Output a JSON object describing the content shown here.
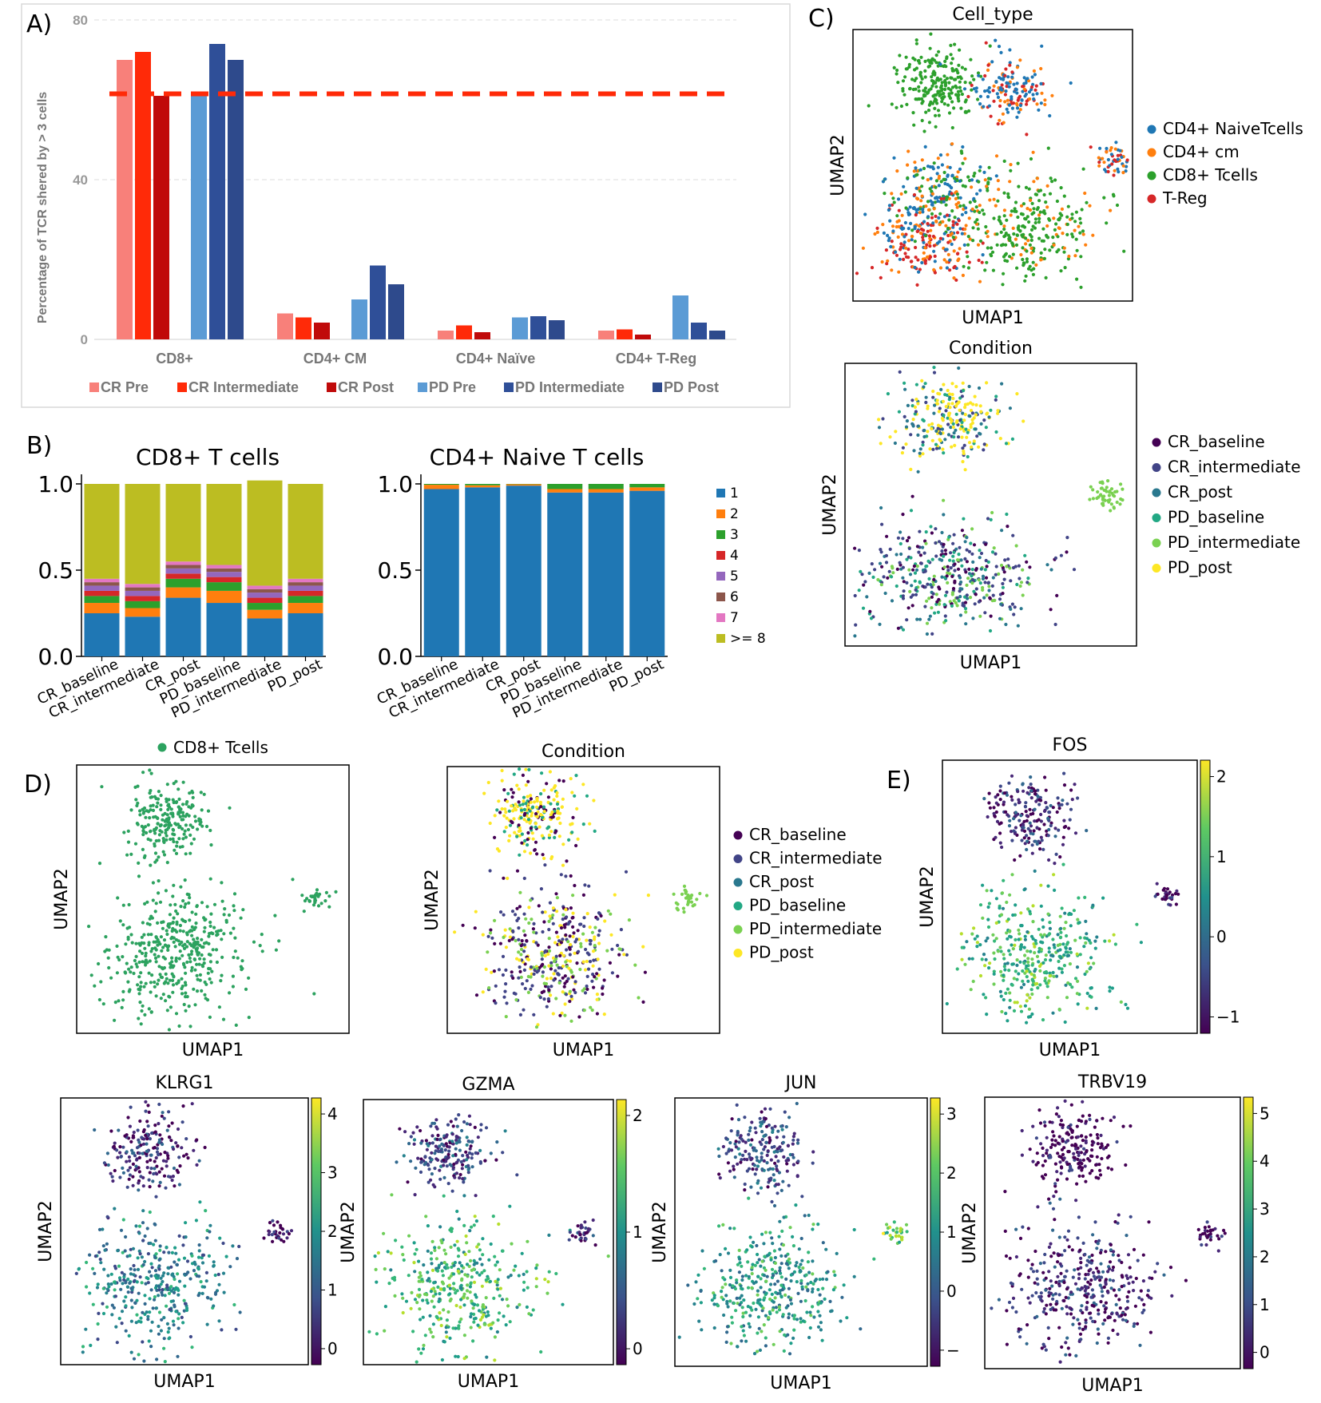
{
  "chart_data": [
    {
      "panel": "A)",
      "type": "bar",
      "ylabel": "Percentage of TCR shered by > 3 cells",
      "ylim": [
        0,
        80
      ],
      "yticks": [
        "80",
        "40",
        "0"
      ],
      "categories": [
        "CD8+",
        "CD4+ CM",
        "CD4+ Naïve",
        "CD4+ T-Reg"
      ],
      "series": [
        {
          "name": "CR Pre",
          "color": "#f8807a",
          "values": [
            70,
            6.5,
            2.2,
            2.2
          ]
        },
        {
          "name": "CR Intermediate",
          "color": "#ff2a08",
          "values": [
            72,
            5.5,
            3.5,
            2.5
          ]
        },
        {
          "name": "CR Post",
          "color": "#c00a0a",
          "values": [
            61,
            4.2,
            1.8,
            1.2
          ]
        },
        {
          "name": "PD Pre",
          "color": "#5b9bd5",
          "values": [
            62,
            10,
            5.5,
            11
          ]
        },
        {
          "name": "PD Intermediate",
          "color": "#2f4f98",
          "values": [
            74,
            18.5,
            5.8,
            4.2
          ]
        },
        {
          "name": "PD Post",
          "color": "#2e4a8c",
          "values": [
            70,
            13.8,
            4.8,
            2.2
          ]
        }
      ],
      "reference_line": {
        "value": 61.5,
        "color": "#ff2a08",
        "style": "dashed"
      }
    },
    {
      "panel": "B)",
      "type": "stacked-bar",
      "title": "CD8+ T cells",
      "yticks": [
        "1.0",
        "0.5",
        "0.0"
      ],
      "categories": [
        "CR_baseline",
        "CR_intermediate",
        "CR_post",
        "PD_baseline",
        "PD_intermediate",
        "PD_post"
      ],
      "series": [
        {
          "name": "1",
          "values": [
            0.25,
            0.23,
            0.34,
            0.31,
            0.22,
            0.25
          ]
        },
        {
          "name": "2",
          "values": [
            0.06,
            0.05,
            0.06,
            0.07,
            0.05,
            0.06
          ]
        },
        {
          "name": "3",
          "values": [
            0.04,
            0.04,
            0.05,
            0.05,
            0.04,
            0.04
          ]
        },
        {
          "name": "4",
          "values": [
            0.03,
            0.03,
            0.03,
            0.03,
            0.03,
            0.03
          ]
        },
        {
          "name": "5",
          "values": [
            0.03,
            0.03,
            0.03,
            0.03,
            0.03,
            0.03
          ]
        },
        {
          "name": "6",
          "values": [
            0.02,
            0.02,
            0.02,
            0.02,
            0.02,
            0.02
          ]
        },
        {
          "name": "7",
          "values": [
            0.02,
            0.02,
            0.02,
            0.02,
            0.02,
            0.02
          ]
        },
        {
          "name": ">= 8",
          "values": [
            0.55,
            0.58,
            0.45,
            0.47,
            0.61,
            0.55
          ]
        }
      ]
    },
    {
      "panel": "B)",
      "type": "stacked-bar",
      "title": "CD4+ Naive T cells",
      "yticks": [
        "1.0",
        "0.5",
        "0.0"
      ],
      "categories": [
        "CR_baseline",
        "CR_intermediate",
        "CR_post",
        "PD_baseline",
        "PD_intermediate",
        "PD_post"
      ],
      "series": [
        {
          "name": "1",
          "values": [
            0.97,
            0.98,
            0.99,
            0.95,
            0.95,
            0.96
          ]
        },
        {
          "name": "2",
          "values": [
            0.025,
            0.012,
            0.008,
            0.02,
            0.02,
            0.02
          ]
        },
        {
          "name": "3",
          "values": [
            0.005,
            0.008,
            0.002,
            0.03,
            0.03,
            0.02
          ]
        }
      ]
    },
    {
      "panel": "C)",
      "type": "scatter",
      "title": "Cell_type",
      "xlabel": "UMAP1",
      "ylabel": "UMAP2",
      "legend": [
        "CD4+ NaiveTcells",
        "CD4+ cm",
        "CD8+ Tcells",
        "T-Reg"
      ]
    },
    {
      "panel": "C)",
      "type": "scatter",
      "title": "Condition",
      "xlabel": "UMAP1",
      "ylabel": "UMAP2",
      "legend": [
        "CR_baseline",
        "CR_intermediate",
        "CR_post",
        "PD_baseline",
        "PD_intermediate",
        "PD_post"
      ]
    },
    {
      "panel": "D)",
      "type": "scatter",
      "title": "",
      "xlabel": "UMAP1",
      "ylabel": "UMAP2",
      "legend": [
        "CD8+ Tcells"
      ]
    },
    {
      "panel": "D)",
      "type": "scatter",
      "title": "Condition",
      "xlabel": "UMAP1",
      "ylabel": "UMAP2",
      "legend": [
        "CR_baseline",
        "CR_intermediate",
        "CR_post",
        "PD_baseline",
        "PD_intermediate",
        "PD_post"
      ]
    },
    {
      "panel": "E)",
      "type": "scatter",
      "title": "FOS",
      "xlabel": "UMAP1",
      "ylabel": "UMAP2",
      "colorbar_ticks": [
        "2",
        "1",
        "0",
        "−1"
      ]
    },
    {
      "panel": "",
      "type": "scatter",
      "title": "KLRG1",
      "xlabel": "UMAP1",
      "ylabel": "UMAP2",
      "colorbar_ticks": [
        "4",
        "3",
        "2",
        "1",
        "0"
      ]
    },
    {
      "panel": "",
      "type": "scatter",
      "title": "GZMA",
      "xlabel": "UMAP1",
      "ylabel": "UMAP2",
      "colorbar_ticks": [
        "2",
        "1",
        "0"
      ]
    },
    {
      "panel": "",
      "type": "scatter",
      "title": "JUN",
      "xlabel": "UMAP1",
      "ylabel": "UMAP2",
      "colorbar_ticks": [
        "3",
        "2",
        "1",
        "0",
        "−"
      ]
    },
    {
      "panel": "",
      "type": "scatter",
      "title": "TRBV19",
      "xlabel": "UMAP1",
      "ylabel": "UMAP2",
      "colorbar_ticks": [
        "5",
        "4",
        "3",
        "2",
        "1",
        "0"
      ]
    }
  ],
  "colors": {
    "cd4_naive": "#1f77b4",
    "cd4_cm": "#ff7f0e",
    "cd8": "#2ca02c",
    "treg": "#d62728",
    "cr_baseline": "#440154",
    "cr_intermediate": "#414487",
    "cr_post": "#2a788e",
    "pd_baseline": "#22a884",
    "pd_intermediate": "#7ad151",
    "pd_post": "#fde725",
    "cd8_single": "#2ca25f"
  },
  "count_palette": [
    "#1f77b4",
    "#ff7f0e",
    "#2ca02c",
    "#d62728",
    "#9467bd",
    "#8c564b",
    "#e377c2",
    "#bcbd22"
  ]
}
